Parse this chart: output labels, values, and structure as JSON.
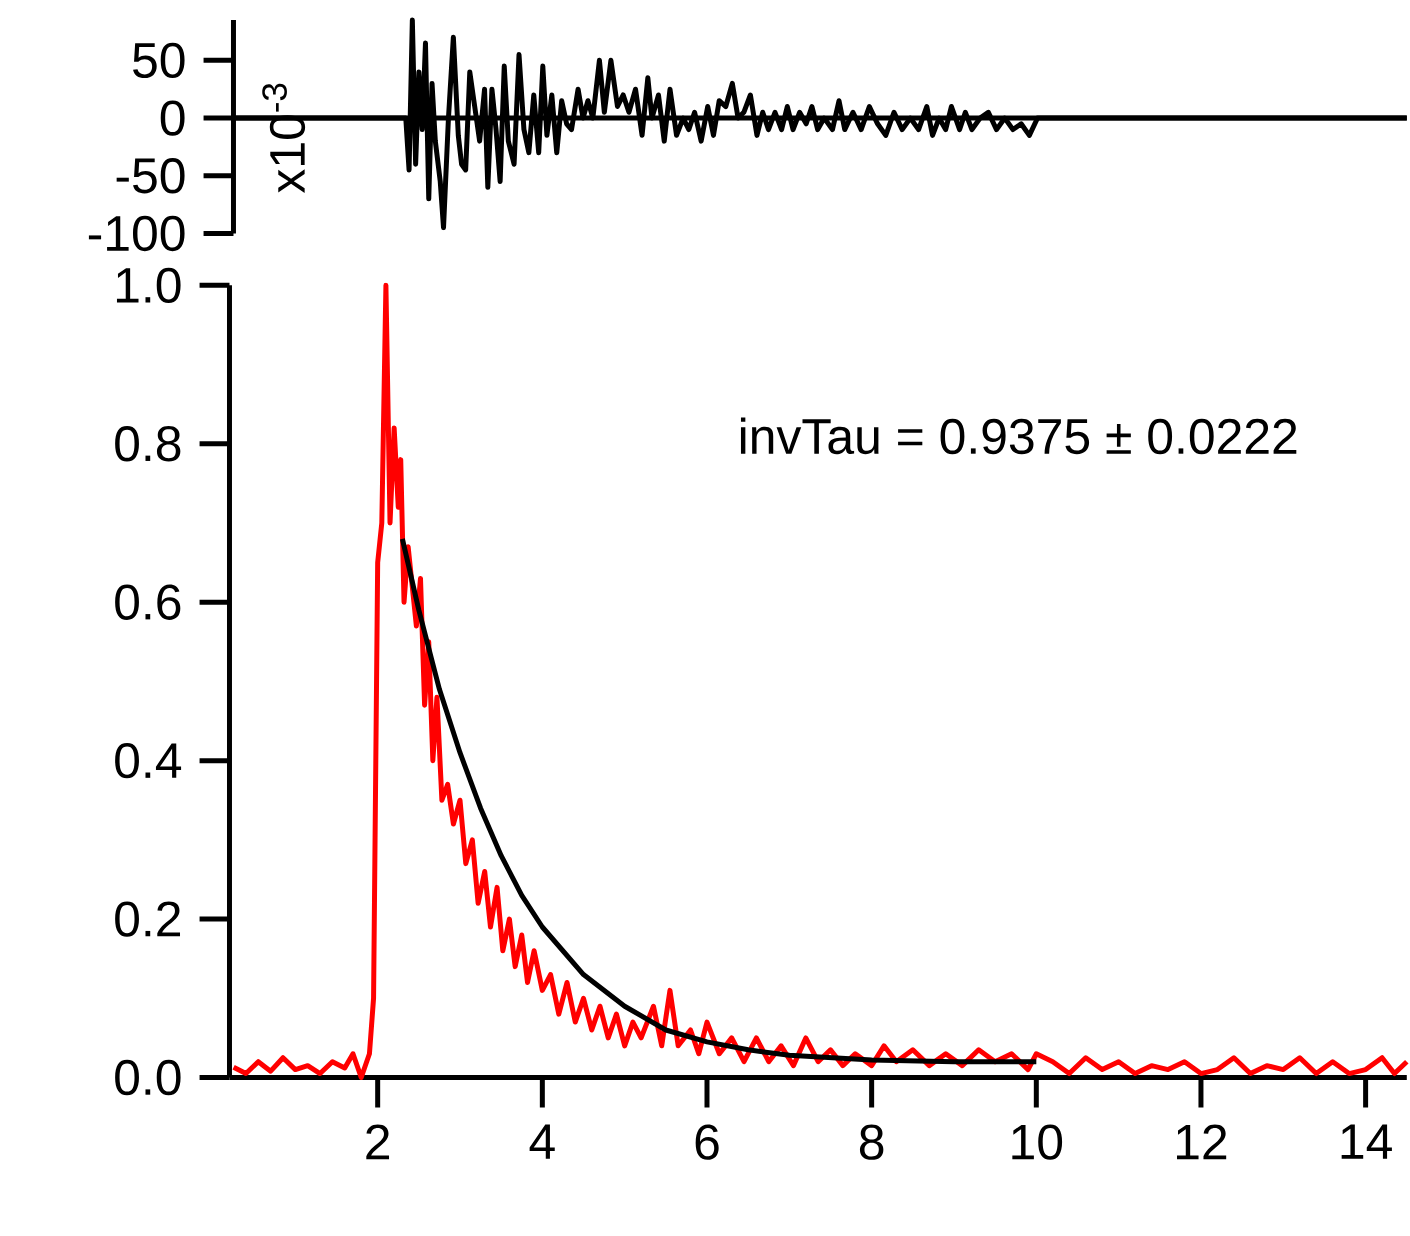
{
  "chart_data": [
    {
      "type": "line",
      "ylabel": "x10$^{-3}$",
      "xlim": [
        0.2,
        14.5
      ],
      "ylim": [
        -100,
        85
      ],
      "yticks": [
        50,
        0,
        -50,
        -100
      ],
      "tick_labels": "y",
      "series": [
        {
          "color": "#000000",
          "x": [
            0.2,
            2.3,
            2.34,
            2.38,
            2.42,
            2.46,
            2.5,
            2.54,
            2.58,
            2.62,
            2.66,
            2.72,
            2.76,
            2.82,
            2.88,
            2.94,
            2.98,
            3.03,
            3.08,
            3.14,
            3.2,
            3.26,
            3.3,
            3.35,
            3.4,
            3.45,
            3.5,
            3.55,
            3.62,
            3.68,
            3.74,
            3.8,
            3.86,
            3.92,
            3.97,
            4.02,
            4.08,
            4.14,
            4.2,
            4.26,
            4.32,
            4.4,
            4.46,
            4.52,
            4.58,
            4.66,
            4.72,
            4.8,
            4.88,
            4.95,
            5.02,
            5.1,
            5.18,
            5.25,
            5.3,
            5.38,
            5.45,
            5.52,
            5.6,
            5.68,
            5.75,
            5.82,
            5.9,
            5.98,
            6.05,
            6.12,
            6.2,
            6.28,
            6.35,
            6.42,
            6.5,
            6.58,
            6.65,
            6.72,
            6.8,
            6.88,
            6.95,
            7.02,
            7.1,
            7.18,
            7.25,
            7.32,
            7.4,
            7.5,
            7.58,
            7.65,
            7.75,
            7.85,
            7.95,
            8.05,
            8.15,
            8.25,
            8.35,
            8.45,
            8.55,
            8.65,
            8.72,
            8.8,
            8.88,
            8.95,
            9.05,
            9.12,
            9.2,
            9.3,
            9.4,
            9.5,
            9.6,
            9.7,
            9.8,
            9.9,
            10.0,
            14.5
          ],
          "values": [
            0,
            0,
            -45,
            85,
            -40,
            40,
            -10,
            65,
            -70,
            30,
            -20,
            -55,
            -95,
            0,
            70,
            -15,
            -40,
            -45,
            40,
            10,
            -20,
            25,
            -60,
            25,
            -10,
            -55,
            45,
            -20,
            -40,
            55,
            -10,
            -30,
            20,
            -30,
            45,
            -15,
            20,
            -30,
            15,
            -5,
            -10,
            25,
            0,
            15,
            0,
            50,
            5,
            50,
            10,
            20,
            5,
            25,
            -15,
            35,
            0,
            20,
            -20,
            25,
            -15,
            0,
            -10,
            5,
            -20,
            10,
            -15,
            15,
            10,
            30,
            0,
            5,
            20,
            -15,
            5,
            -10,
            5,
            -10,
            10,
            -10,
            5,
            -5,
            10,
            -10,
            0,
            -10,
            15,
            -10,
            5,
            -10,
            10,
            -5,
            -15,
            5,
            -10,
            0,
            -10,
            10,
            -15,
            0,
            -10,
            10,
            -10,
            5,
            -10,
            0,
            5,
            -10,
            0,
            -10,
            -5,
            -15,
            0,
            0
          ]
        }
      ]
    },
    {
      "type": "line",
      "xlim": [
        0.2,
        14.5
      ],
      "ylim": [
        0,
        1.0
      ],
      "xticks": [
        2,
        4,
        6,
        8,
        10,
        12,
        14
      ],
      "yticks": [
        {
          "value": 0,
          "label": "0.0"
        },
        {
          "value": 0.2,
          "label": "0.2"
        },
        {
          "value": 0.4,
          "label": "0.4"
        },
        {
          "value": 0.6,
          "label": "0.6"
        },
        {
          "value": 0.8,
          "label": "0.8"
        },
        {
          "value": 1.0,
          "label": "1.0"
        }
      ],
      "annotations": [
        "invTau  = 0.9375 ± 0.0222"
      ],
      "series": [
        {
          "color": "#ff0000",
          "x": [
            0.25,
            0.4,
            0.55,
            0.7,
            0.85,
            1.0,
            1.15,
            1.3,
            1.45,
            1.6,
            1.7,
            1.8,
            1.9,
            1.95,
            2.0,
            2.05,
            2.1,
            2.15,
            2.2,
            2.25,
            2.28,
            2.32,
            2.37,
            2.42,
            2.47,
            2.52,
            2.57,
            2.62,
            2.67,
            2.72,
            2.78,
            2.85,
            2.92,
            3.0,
            3.07,
            3.15,
            3.22,
            3.3,
            3.37,
            3.45,
            3.52,
            3.6,
            3.67,
            3.75,
            3.82,
            3.9,
            4.0,
            4.1,
            4.2,
            4.3,
            4.4,
            4.5,
            4.6,
            4.7,
            4.8,
            4.9,
            5.0,
            5.1,
            5.2,
            5.35,
            5.45,
            5.55,
            5.65,
            5.8,
            5.9,
            6.0,
            6.15,
            6.3,
            6.45,
            6.6,
            6.75,
            6.9,
            7.05,
            7.2,
            7.35,
            7.5,
            7.65,
            7.8,
            8.0,
            8.15,
            8.3,
            8.5,
            8.7,
            8.9,
            9.1,
            9.3,
            9.5,
            9.7,
            9.9,
            10.0,
            10.2,
            10.4,
            10.6,
            10.8,
            11.0,
            11.2,
            11.4,
            11.6,
            11.8,
            12.0,
            12.2,
            12.4,
            12.6,
            12.8,
            13.0,
            13.2,
            13.4,
            13.6,
            13.8,
            14.0,
            14.2,
            14.35,
            14.5
          ],
          "values": [
            0.013,
            0.005,
            0.02,
            0.008,
            0.025,
            0.01,
            0.015,
            0.005,
            0.02,
            0.012,
            0.03,
            0.0,
            0.03,
            0.1,
            0.65,
            0.7,
            1.0,
            0.7,
            0.82,
            0.72,
            0.78,
            0.6,
            0.67,
            0.62,
            0.57,
            0.63,
            0.47,
            0.55,
            0.4,
            0.48,
            0.35,
            0.37,
            0.32,
            0.35,
            0.27,
            0.3,
            0.22,
            0.26,
            0.19,
            0.24,
            0.16,
            0.2,
            0.14,
            0.18,
            0.12,
            0.16,
            0.11,
            0.13,
            0.08,
            0.12,
            0.07,
            0.1,
            0.06,
            0.09,
            0.05,
            0.08,
            0.04,
            0.07,
            0.05,
            0.09,
            0.04,
            0.11,
            0.04,
            0.06,
            0.03,
            0.07,
            0.03,
            0.05,
            0.02,
            0.05,
            0.02,
            0.04,
            0.015,
            0.05,
            0.02,
            0.035,
            0.015,
            0.03,
            0.015,
            0.04,
            0.02,
            0.035,
            0.015,
            0.03,
            0.015,
            0.035,
            0.02,
            0.03,
            0.01,
            0.03,
            0.02,
            0.005,
            0.025,
            0.01,
            0.02,
            0.005,
            0.015,
            0.01,
            0.02,
            0.005,
            0.01,
            0.025,
            0.005,
            0.015,
            0.01,
            0.025,
            0.005,
            0.02,
            0.005,
            0.01,
            0.025,
            0.005,
            0.02
          ]
        },
        {
          "color": "#000000",
          "x": [
            2.3,
            2.5,
            2.75,
            3.0,
            3.25,
            3.5,
            3.75,
            4.0,
            4.5,
            5.0,
            5.5,
            6.0,
            6.5,
            7.0,
            8.0,
            9.0,
            10.0
          ],
          "values": [
            0.68,
            0.59,
            0.49,
            0.41,
            0.34,
            0.28,
            0.23,
            0.19,
            0.13,
            0.09,
            0.06,
            0.045,
            0.035,
            0.028,
            0.022,
            0.02,
            0.02
          ]
        }
      ]
    }
  ]
}
